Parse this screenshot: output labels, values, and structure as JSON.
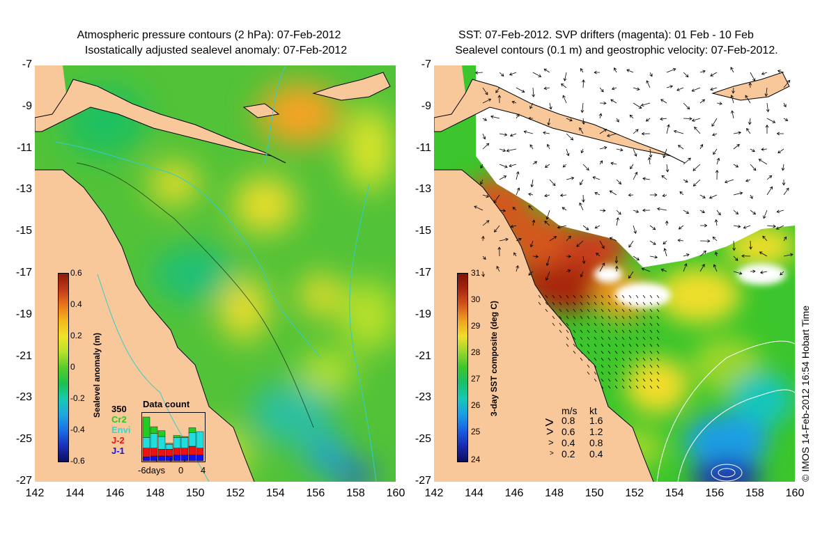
{
  "left_panel": {
    "title_line1": "Atmospheric pressure contours (2 hPa): 07-Feb-2012",
    "title_line2": "Isostatically adjusted sealevel anomaly: 07-Feb-2012",
    "colorbar": {
      "label": "Sealevel anomaly (m)",
      "ticks": [
        "0.6",
        "0.4",
        "0.2",
        "0",
        "-0.2",
        "-0.4",
        "-0.6"
      ],
      "colors": [
        "#8b1a0a",
        "#c0391b",
        "#e8761c",
        "#f3b81b",
        "#f0e22a",
        "#b8e12c",
        "#58cc2a",
        "#1bc150",
        "#17c8b0",
        "#1fa8e0",
        "#1a6ee6",
        "#1a2fb8",
        "#0a1060"
      ]
    },
    "data_count": {
      "title": "Data count",
      "max_label": "350",
      "missions": [
        {
          "name": "Cr2",
          "color": "#22cc22"
        },
        {
          "name": "Envi",
          "color": "#22dddd"
        },
        {
          "name": "J-2",
          "color": "#ee1111"
        },
        {
          "name": "J-1",
          "color": "#1111ee"
        }
      ],
      "x_ticks": [
        "-6days",
        "0",
        "4"
      ],
      "stacks": [
        {
          "j1": 0.08,
          "j2": 0.18,
          "envi": 0.22,
          "cr2": 0.42
        },
        {
          "j1": 0.1,
          "j2": 0.16,
          "envi": 0.3,
          "cr2": 0.14
        },
        {
          "j1": 0.1,
          "j2": 0.14,
          "envi": 0.26,
          "cr2": 0.12
        },
        {
          "j1": 0.1,
          "j2": 0.14,
          "envi": 0.1,
          "cr2": 0.02
        },
        {
          "j1": 0.12,
          "j2": 0.14,
          "envi": 0.22,
          "cr2": 0.04
        },
        {
          "j1": 0.12,
          "j2": 0.14,
          "envi": 0.22,
          "cr2": 0.02
        },
        {
          "j1": 0.12,
          "j2": 0.18,
          "envi": 0.28,
          "cr2": 0.1
        },
        {
          "j1": 0.12,
          "j2": 0.14,
          "envi": 0.34,
          "cr2": 0.0
        }
      ]
    }
  },
  "right_panel": {
    "title_line1": "SST: 07-Feb-2012. SVP drifters (magenta): 01 Feb - 10 Feb",
    "title_line2": "Sealevel contours (0.1 m) and geostrophic velocity: 07-Feb-2012.",
    "colorbar": {
      "label": "3-day SST composite (deg C)",
      "ticks": [
        "31",
        "30",
        "29",
        "28",
        "27",
        "26",
        "25",
        "24"
      ],
      "colors": [
        "#7a1208",
        "#a8260f",
        "#d4561b",
        "#eda321",
        "#f1dd29",
        "#9ad62c",
        "#3cc52c",
        "#17c06a",
        "#18c6b8",
        "#1a9ee3",
        "#1a5fe3",
        "#1a2ab0",
        "#0a0f5a"
      ]
    },
    "vector_legend": {
      "header_ms": "m/s",
      "header_kt": "kt",
      "rows": [
        {
          "ms": "0.8",
          "kt": "1.6",
          "symbol": ">"
        },
        {
          "ms": "0.6",
          "kt": "1.2",
          "symbol": ">"
        },
        {
          "ms": "0.4",
          "kt": "0.8",
          "symbol": ">"
        },
        {
          "ms": "0.2",
          "kt": "0.4",
          "symbol": ">"
        }
      ]
    },
    "credit": "© IMOS 14-Feb-2012 16:54 Hobart Time"
  },
  "axes": {
    "y_ticks": [
      "-7",
      "-9",
      "-11",
      "-13",
      "-15",
      "-17",
      "-19",
      "-21",
      "-23",
      "-25",
      "-27"
    ],
    "x_ticks": [
      "142",
      "144",
      "146",
      "148",
      "150",
      "152",
      "154",
      "156",
      "158",
      "160"
    ]
  },
  "colors": {
    "land": "#f8c89a",
    "cloud": "#ffffff",
    "coast": "#000000",
    "isobath": "#33cccc"
  }
}
